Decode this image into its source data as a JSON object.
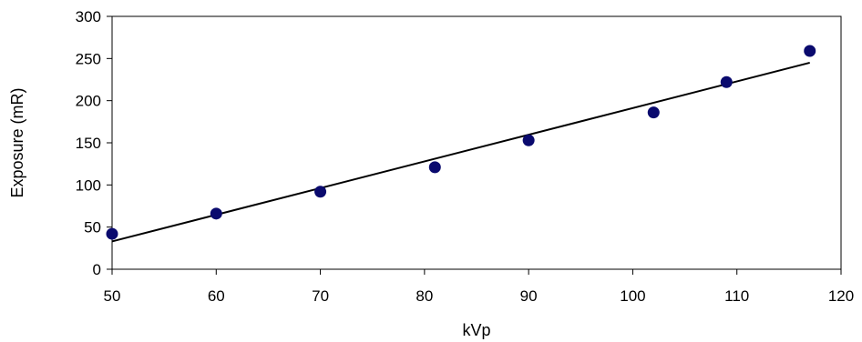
{
  "chart_data": {
    "type": "scatter",
    "title": "",
    "xlabel": "kVp",
    "ylabel": "Exposure (mR)",
    "xlim": [
      50,
      120
    ],
    "ylim": [
      0,
      300
    ],
    "xticks": [
      50,
      60,
      70,
      80,
      90,
      100,
      110,
      120
    ],
    "yticks": [
      0,
      50,
      100,
      150,
      200,
      250,
      300
    ],
    "grid": false,
    "legend": "none",
    "series": [
      {
        "marker_color": "#0a0a6e",
        "points": [
          {
            "x": 50,
            "y": 42
          },
          {
            "x": 60,
            "y": 66
          },
          {
            "x": 70,
            "y": 92
          },
          {
            "x": 81,
            "y": 121
          },
          {
            "x": 90,
            "y": 153
          },
          {
            "x": 102,
            "y": 186
          },
          {
            "x": 109,
            "y": 222
          },
          {
            "x": 117,
            "y": 259
          }
        ]
      }
    ],
    "trendline": {
      "type": "linear",
      "color": "#000000",
      "start": {
        "x": 50,
        "y": 33
      },
      "end": {
        "x": 117,
        "y": 245
      }
    }
  }
}
